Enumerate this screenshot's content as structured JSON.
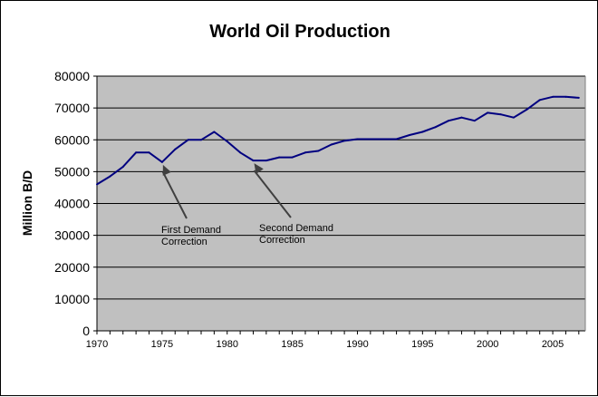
{
  "chart_data": {
    "type": "line",
    "title": "World Oil Production",
    "ylabel": "Million B/D",
    "xlabel": "",
    "xlim": [
      1970,
      2007
    ],
    "ylim": [
      0,
      80000
    ],
    "x_ticks": [
      "1970",
      "1975",
      "1980",
      "1985",
      "1990",
      "1995",
      "2000",
      "2005"
    ],
    "y_ticks": [
      "0",
      "10000",
      "20000",
      "30000",
      "40000",
      "50000",
      "60000",
      "70000",
      "80000"
    ],
    "grid": "horizontal",
    "plot_background": "#c0c0c0",
    "series": [
      {
        "color": "#000080",
        "x": [
          1970,
          1971,
          1972,
          1973,
          1974,
          1975,
          1976,
          1977,
          1978,
          1979,
          1980,
          1981,
          1982,
          1983,
          1984,
          1985,
          1986,
          1987,
          1988,
          1989,
          1990,
          1991,
          1992,
          1993,
          1994,
          1995,
          1996,
          1997,
          1998,
          1999,
          2000,
          2001,
          2002,
          2003,
          2004,
          2005,
          2006,
          2007
        ],
        "values": [
          46000,
          48500,
          51500,
          56000,
          56000,
          53000,
          57000,
          60000,
          60000,
          62500,
          59500,
          56000,
          53500,
          53500,
          54500,
          54500,
          56000,
          56500,
          58500,
          59700,
          60200,
          60200,
          60200,
          60200,
          61500,
          62500,
          64000,
          66000,
          67000,
          66000,
          68500,
          68000,
          67000,
          69500,
          72500,
          73500,
          73500,
          73200
        ]
      }
    ],
    "annotations": [
      {
        "text_lines": [
          "First Demand",
          "Correction"
        ],
        "x": 1975,
        "y": 53000
      },
      {
        "text_lines": [
          "Second Demand",
          "Correction"
        ],
        "x": 1982,
        "y": 53500
      }
    ]
  }
}
